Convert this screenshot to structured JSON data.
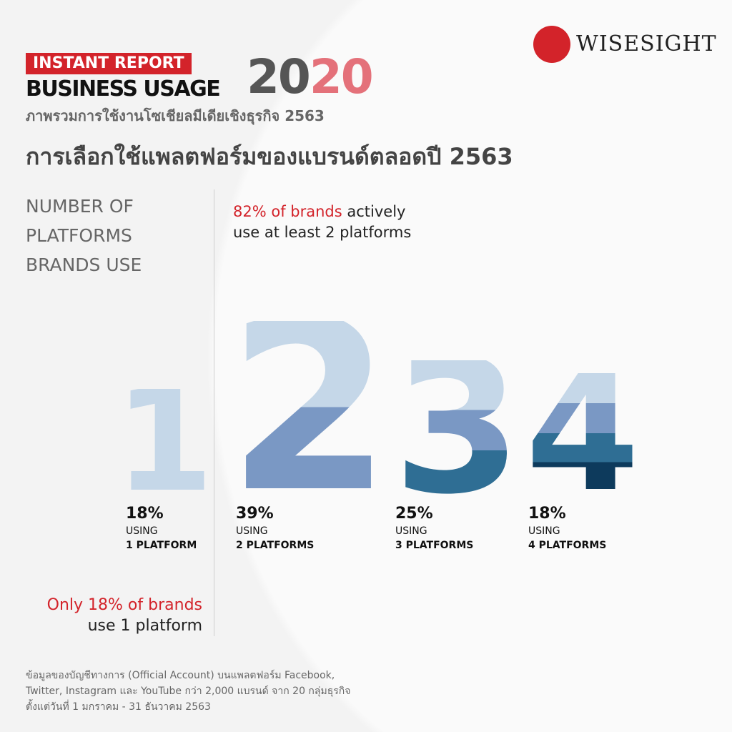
{
  "brand": {
    "logo_text": "WISESIGHT",
    "accent": "#d3232a"
  },
  "header": {
    "tag": "INSTANT REPORT",
    "title": "BUSINESS USAGE",
    "year_a": "20",
    "year_b": "20",
    "subtitle": "ภาพรวมการใช้งานโซเชียลมีเดียเชิงธุรกิจ 2563"
  },
  "heading": "การเลือกใช้แพลตฟอร์มของแบรนด์ตลอดปี 2563",
  "side_label": [
    "NUMBER OF",
    "PLATFORMS",
    "BRANDS USE"
  ],
  "callout": {
    "highlight": "82% of brands",
    "rest1": " actively",
    "line2": "use at least 2 platforms"
  },
  "chart_data": {
    "type": "bar",
    "categories": [
      "1",
      "2",
      "3",
      "4"
    ],
    "values": [
      18,
      39,
      25,
      18
    ],
    "labels": [
      {
        "percent": "18%",
        "using": "USING",
        "platforms": "1 PLATFORM"
      },
      {
        "percent": "39%",
        "using": "USING",
        "platforms": "2 PLATFORMS"
      },
      {
        "percent": "25%",
        "using": "USING",
        "platforms": "3 PLATFORMS"
      },
      {
        "percent": "18%",
        "using": "USING",
        "platforms": "4 PLATFORMS"
      }
    ],
    "colors": [
      "#c5d7e8",
      "#7a98c4",
      "#2f6e94",
      "#0d3a5c"
    ]
  },
  "only": {
    "highlight": "Only 18% of brands",
    "line2": "use 1 platform"
  },
  "footnote": [
    "ข้อมูลของบัญชีทางการ (Official Account) บนแพลตฟอร์ม Facebook,",
    "Twitter, Instagram และ YouTube กว่า 2,000 แบรนด์ จาก 20 กลุ่มธุรกิจ",
    "ตั้งแต่วันที่ 1 มกราคม - 31 ธันวาคม 2563"
  ]
}
